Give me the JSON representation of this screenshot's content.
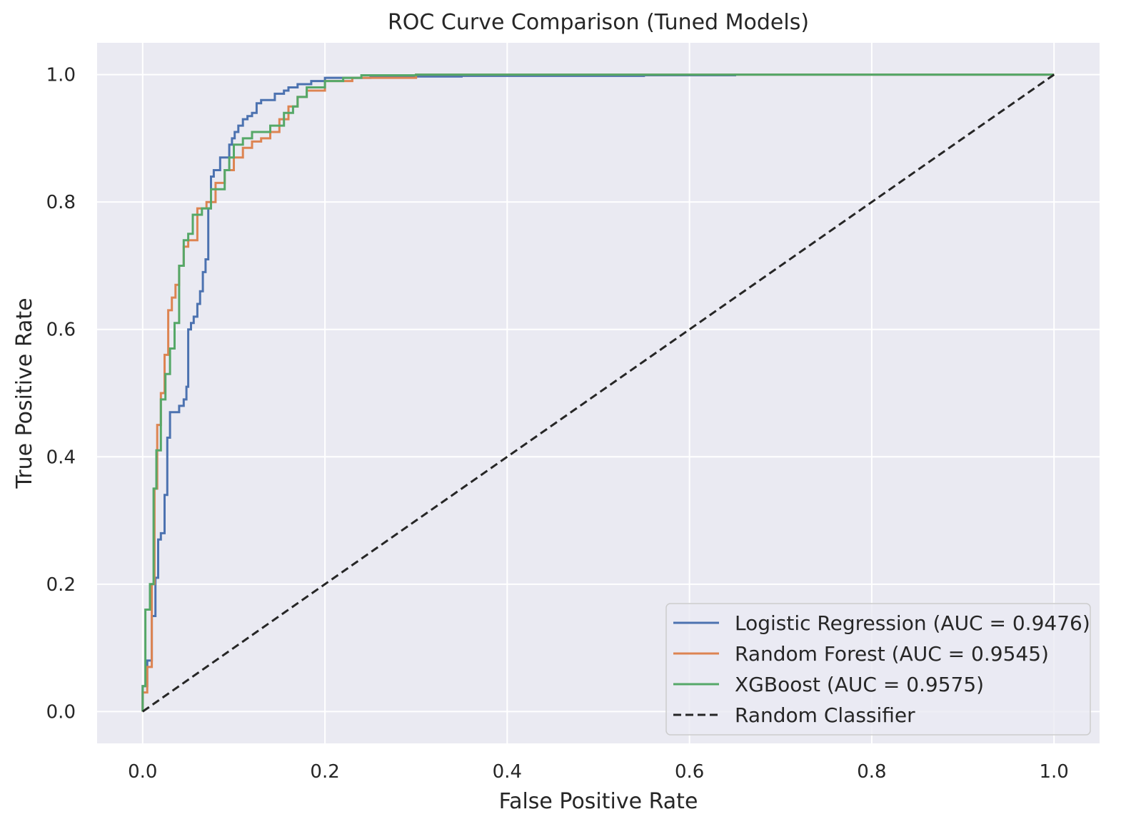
{
  "chart_data": {
    "type": "line",
    "title": "ROC Curve Comparison (Tuned Models)",
    "xlabel": "False Positive Rate",
    "ylabel": "True Positive Rate",
    "xlim": [
      -0.05,
      1.05
    ],
    "ylim": [
      -0.05,
      1.05
    ],
    "xticks": [
      0.0,
      0.2,
      0.4,
      0.6,
      0.8,
      1.0
    ],
    "yticks": [
      0.0,
      0.2,
      0.4,
      0.6,
      0.8,
      1.0
    ],
    "xtick_labels": [
      "0.0",
      "0.2",
      "0.4",
      "0.6",
      "0.8",
      "1.0"
    ],
    "ytick_labels": [
      "0.0",
      "0.2",
      "0.4",
      "0.6",
      "0.8",
      "1.0"
    ],
    "grid": true,
    "legend_position": "lower-right",
    "series": [
      {
        "name": "Logistic Regression (AUC = 0.9476)",
        "color": "#4c72b0",
        "dash": false,
        "x": [
          0.0,
          0.0,
          0.005,
          0.005,
          0.01,
          0.01,
          0.014,
          0.014,
          0.017,
          0.017,
          0.02,
          0.02,
          0.024,
          0.024,
          0.027,
          0.027,
          0.03,
          0.03,
          0.04,
          0.04,
          0.045,
          0.045,
          0.048,
          0.048,
          0.05,
          0.05,
          0.053,
          0.053,
          0.056,
          0.056,
          0.06,
          0.06,
          0.063,
          0.063,
          0.066,
          0.066,
          0.069,
          0.069,
          0.072,
          0.072,
          0.075,
          0.075,
          0.078,
          0.078,
          0.085,
          0.085,
          0.095,
          0.095,
          0.098,
          0.098,
          0.101,
          0.101,
          0.105,
          0.105,
          0.11,
          0.11,
          0.115,
          0.115,
          0.12,
          0.12,
          0.125,
          0.125,
          0.13,
          0.13,
          0.145,
          0.145,
          0.155,
          0.155,
          0.16,
          0.16,
          0.17,
          0.17,
          0.185,
          0.185,
          0.2,
          0.2,
          0.25,
          0.25,
          0.35,
          0.35,
          0.55,
          0.55,
          0.65,
          0.65,
          1.0
        ],
        "y": [
          0.0,
          0.04,
          0.04,
          0.08,
          0.08,
          0.15,
          0.15,
          0.21,
          0.21,
          0.27,
          0.27,
          0.28,
          0.28,
          0.34,
          0.34,
          0.43,
          0.43,
          0.47,
          0.47,
          0.48,
          0.48,
          0.49,
          0.49,
          0.51,
          0.51,
          0.6,
          0.6,
          0.61,
          0.61,
          0.62,
          0.62,
          0.64,
          0.64,
          0.66,
          0.66,
          0.69,
          0.69,
          0.71,
          0.71,
          0.79,
          0.79,
          0.84,
          0.84,
          0.85,
          0.85,
          0.87,
          0.87,
          0.89,
          0.89,
          0.9,
          0.9,
          0.91,
          0.91,
          0.92,
          0.92,
          0.93,
          0.93,
          0.935,
          0.935,
          0.94,
          0.94,
          0.955,
          0.955,
          0.96,
          0.96,
          0.97,
          0.97,
          0.975,
          0.975,
          0.98,
          0.98,
          0.985,
          0.985,
          0.99,
          0.99,
          0.995,
          0.995,
          0.997,
          0.997,
          0.998,
          0.998,
          0.999,
          0.999,
          1.0,
          1.0
        ]
      },
      {
        "name": "Random Forest (AUC = 0.9545)",
        "color": "#dd8452",
        "dash": false,
        "x": [
          0.0,
          0.0,
          0.005,
          0.005,
          0.01,
          0.01,
          0.013,
          0.013,
          0.016,
          0.016,
          0.02,
          0.02,
          0.024,
          0.024,
          0.028,
          0.028,
          0.032,
          0.032,
          0.036,
          0.036,
          0.04,
          0.04,
          0.045,
          0.045,
          0.05,
          0.05,
          0.06,
          0.06,
          0.07,
          0.07,
          0.08,
          0.08,
          0.09,
          0.09,
          0.1,
          0.1,
          0.11,
          0.11,
          0.12,
          0.12,
          0.13,
          0.13,
          0.14,
          0.14,
          0.15,
          0.15,
          0.16,
          0.16,
          0.17,
          0.17,
          0.18,
          0.18,
          0.2,
          0.2,
          0.23,
          0.23,
          0.3,
          0.3,
          1.0
        ],
        "y": [
          0.0,
          0.03,
          0.03,
          0.07,
          0.07,
          0.2,
          0.2,
          0.35,
          0.35,
          0.45,
          0.45,
          0.5,
          0.5,
          0.56,
          0.56,
          0.63,
          0.63,
          0.65,
          0.65,
          0.67,
          0.67,
          0.7,
          0.7,
          0.73,
          0.73,
          0.74,
          0.74,
          0.79,
          0.79,
          0.8,
          0.8,
          0.83,
          0.83,
          0.85,
          0.85,
          0.87,
          0.87,
          0.885,
          0.885,
          0.895,
          0.895,
          0.9,
          0.9,
          0.91,
          0.91,
          0.93,
          0.93,
          0.95,
          0.95,
          0.965,
          0.965,
          0.975,
          0.975,
          0.99,
          0.99,
          0.995,
          0.995,
          1.0,
          1.0
        ]
      },
      {
        "name": "XGBoost (AUC = 0.9575)",
        "color": "#55a868",
        "dash": false,
        "x": [
          0.0,
          0.0,
          0.003,
          0.003,
          0.008,
          0.008,
          0.012,
          0.012,
          0.015,
          0.015,
          0.02,
          0.02,
          0.025,
          0.025,
          0.03,
          0.03,
          0.035,
          0.035,
          0.04,
          0.04,
          0.045,
          0.045,
          0.05,
          0.05,
          0.055,
          0.055,
          0.065,
          0.065,
          0.075,
          0.075,
          0.09,
          0.09,
          0.095,
          0.095,
          0.1,
          0.1,
          0.11,
          0.11,
          0.12,
          0.12,
          0.14,
          0.14,
          0.155,
          0.155,
          0.165,
          0.165,
          0.17,
          0.17,
          0.18,
          0.18,
          0.2,
          0.2,
          0.22,
          0.22,
          0.24,
          0.24,
          0.3,
          0.3,
          1.0
        ],
        "y": [
          0.0,
          0.04,
          0.04,
          0.16,
          0.16,
          0.2,
          0.2,
          0.35,
          0.35,
          0.41,
          0.41,
          0.49,
          0.49,
          0.53,
          0.53,
          0.57,
          0.57,
          0.61,
          0.61,
          0.7,
          0.7,
          0.74,
          0.74,
          0.75,
          0.75,
          0.78,
          0.78,
          0.79,
          0.79,
          0.82,
          0.82,
          0.85,
          0.85,
          0.87,
          0.87,
          0.89,
          0.89,
          0.9,
          0.9,
          0.91,
          0.91,
          0.92,
          0.92,
          0.94,
          0.94,
          0.95,
          0.95,
          0.965,
          0.965,
          0.98,
          0.98,
          0.99,
          0.99,
          0.995,
          0.995,
          0.999,
          0.999,
          1.0,
          1.0
        ]
      },
      {
        "name": "Random Classifier",
        "color": "#262626",
        "dash": true,
        "x": [
          0.0,
          1.0
        ],
        "y": [
          0.0,
          1.0
        ]
      }
    ]
  }
}
